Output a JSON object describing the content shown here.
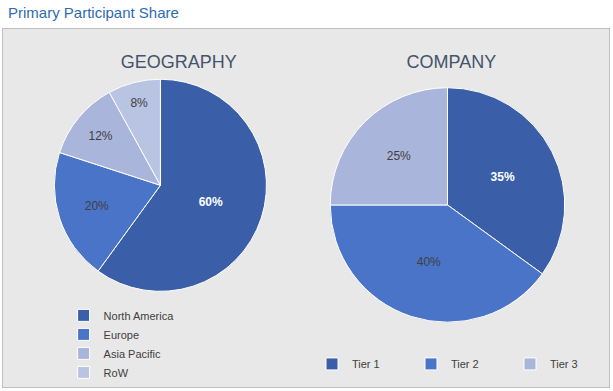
{
  "title": "Primary Participant Share",
  "chart_data": [
    {
      "type": "pie",
      "title": "GEOGRAPHY",
      "categories": [
        "North America",
        "Europe",
        "Asia Pacific",
        "RoW"
      ],
      "values": [
        60,
        20,
        12,
        8
      ],
      "value_labels": [
        "60%",
        "20%",
        "12%",
        "8%"
      ],
      "colors": [
        "#3A5FA8",
        "#4A74C8",
        "#A9B5DA",
        "#B9C3E2"
      ],
      "data_labels": true,
      "legend": "bottom"
    },
    {
      "type": "pie",
      "title": "COMPANY",
      "categories": [
        "Tier 1",
        "Tier 2",
        "Tier 3"
      ],
      "values": [
        35,
        40,
        25
      ],
      "value_labels": [
        "35%",
        "40%",
        "25%"
      ],
      "colors": [
        "#3A5FA8",
        "#4A74C8",
        "#A9B5DA"
      ],
      "data_labels": true,
      "legend": "bottom"
    }
  ]
}
